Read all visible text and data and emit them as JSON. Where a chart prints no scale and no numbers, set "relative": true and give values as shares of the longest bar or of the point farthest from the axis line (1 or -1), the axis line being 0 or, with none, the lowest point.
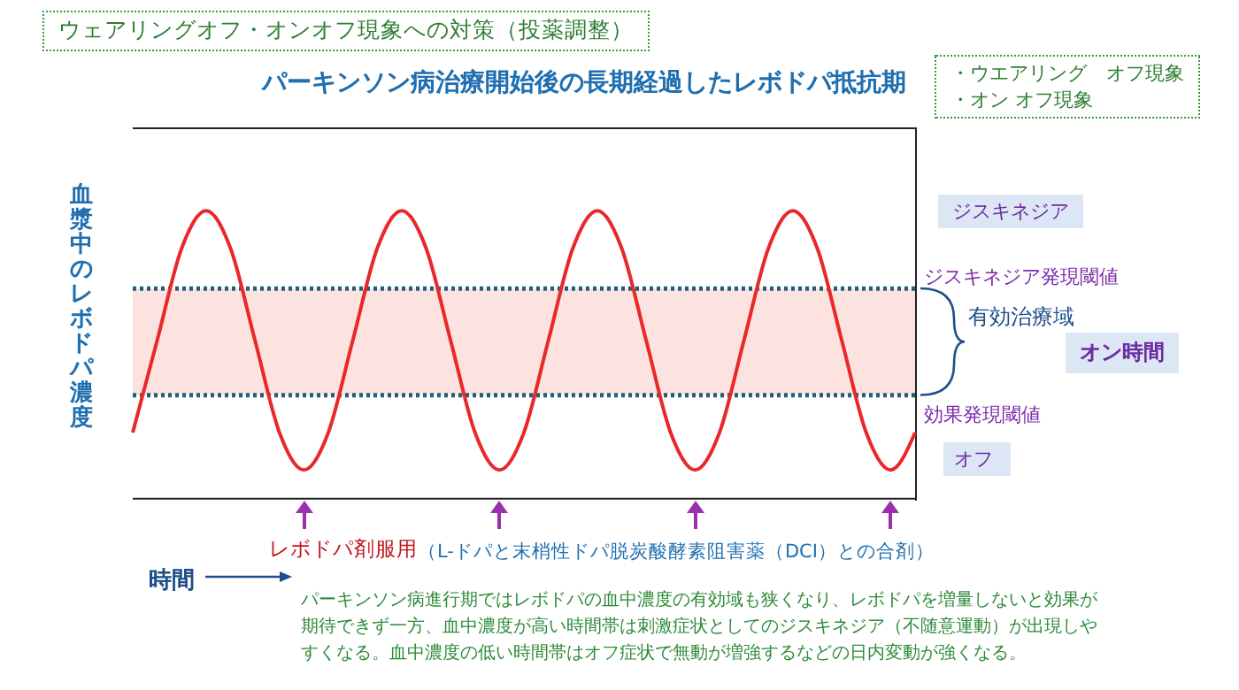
{
  "chart_data": {
    "type": "line",
    "relative": true,
    "title": "パーキンソン病治療開始後の長期経過したレボドパ抵抗期",
    "ylabel": "血漿中のレボドパ濃度",
    "xlabel": "時間",
    "categories": [
      null,
      null,
      null,
      null,
      null,
      null,
      null,
      null,
      null,
      null,
      null,
      null,
      null,
      null,
      null,
      null,
      null,
      null,
      null,
      null,
      null,
      null,
      null,
      null,
      null,
      null,
      null,
      null,
      null,
      null,
      null,
      null,
      null
    ],
    "series": [
      {
        "color": "#e8282b",
        "values": [
          0.23,
          0.55,
          0.87,
          1.0,
          0.87,
          0.55,
          0.23,
          0.1,
          0.23,
          0.55,
          0.87,
          1.0,
          0.87,
          0.55,
          0.23,
          0.1,
          0.23,
          0.55,
          0.87,
          1.0,
          0.87,
          0.55,
          0.23,
          0.1,
          0.23,
          0.55,
          0.87,
          1.0,
          0.87,
          0.55,
          0.23,
          0.1,
          0.23
        ]
      }
    ],
    "bands": [
      {
        "axis": "y",
        "from": 0.36,
        "to": 0.73,
        "label": "有効治療域",
        "color": "#fde3df"
      }
    ],
    "ref_lines": [
      {
        "axis": "y",
        "value": 0.73,
        "label": "ジスキネジア発現閾値",
        "color": "#1f5f7a",
        "line_style": "dotted"
      },
      {
        "axis": "y",
        "value": 0.36,
        "label": "効果発現閾値",
        "color": "#1f5f7a",
        "line_style": "dotted"
      }
    ],
    "annotations": [
      "ウェアリングオフ・オンオフ現象への対策（投薬調整）",
      "・ウエアリング　オフ現象",
      "・オン オフ現象",
      "ジスキネジア",
      "オフ",
      "オン時間",
      "レボドパ剤服用",
      "（L-ドパと末梢性ドパ脱炭酸酵素阻害薬（DCI）との合剤）",
      "パーキンソン病進行期ではレボドパの血中濃度の有効域も狭くなり、レボドパを増量しないと効果が期待できず一方、血中濃度が高い時間帯は刺激症状としてのジスキネジア（不随意運動）が出現しやすくなる。血中濃度の低い時間帯はオフ症状で無動が増強するなどの日内変動が強くなる。"
    ],
    "grid": false,
    "legend": false,
    "marker": "none",
    "line_style": "solid"
  }
}
